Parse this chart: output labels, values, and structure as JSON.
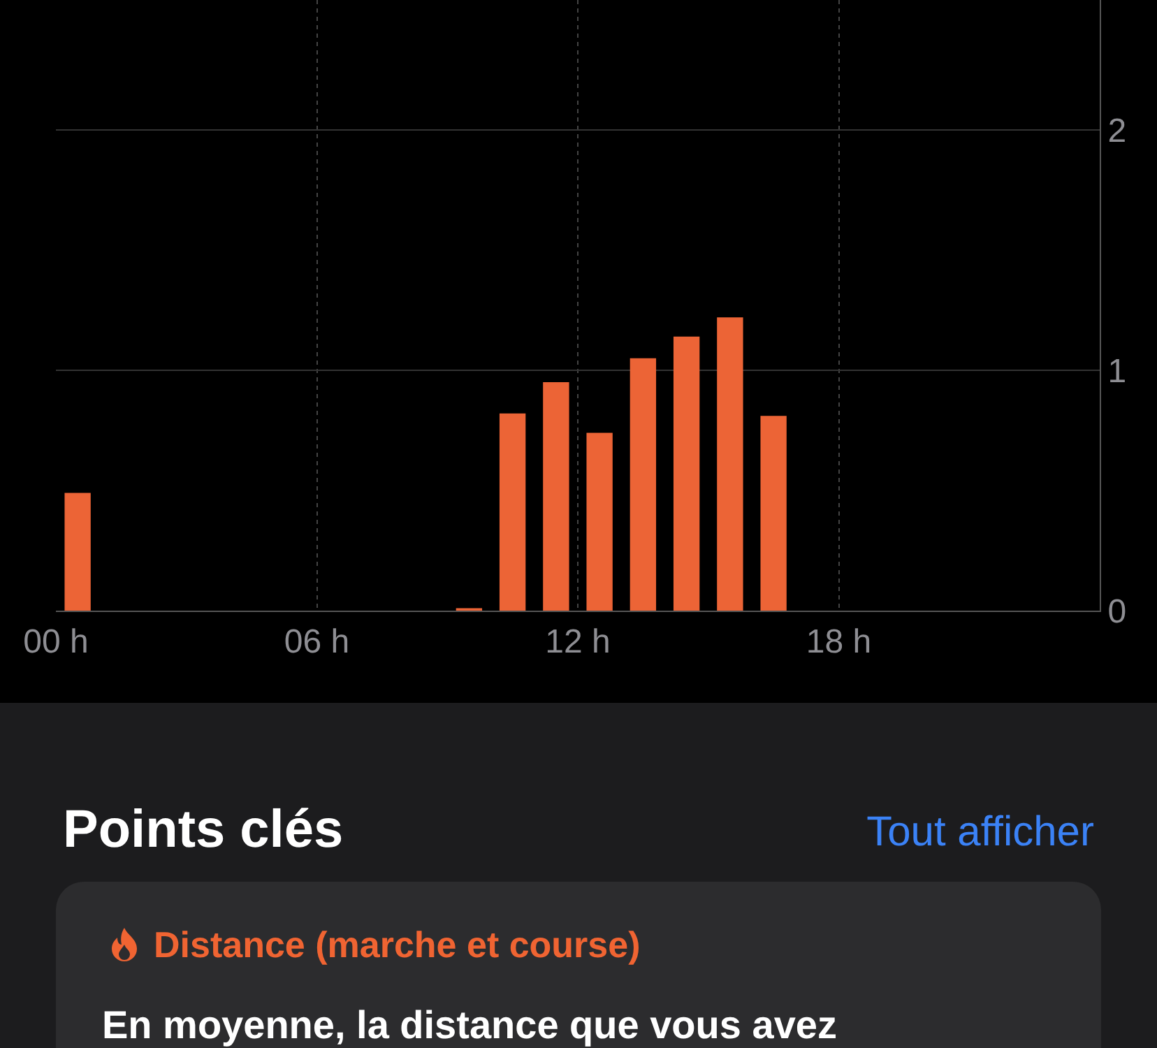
{
  "chart_data": {
    "type": "bar",
    "x": [
      0.5,
      9.5,
      10.5,
      11.5,
      12.5,
      13.5,
      14.5,
      15.5,
      16.5
    ],
    "values": [
      0.49,
      0.01,
      0.82,
      0.95,
      0.74,
      1.05,
      1.14,
      1.22,
      0.81
    ],
    "color": "#ec6436",
    "xlim": [
      0,
      24
    ],
    "xticks": [
      {
        "value": 0,
        "label": "00 h"
      },
      {
        "value": 6,
        "label": "06 h"
      },
      {
        "value": 12,
        "label": "12 h"
      },
      {
        "value": 18,
        "label": "18 h"
      }
    ],
    "ylim": [
      0,
      2.54
    ],
    "yticks": [
      0,
      1,
      2
    ],
    "grid": true,
    "annotations": [
      "Points clés",
      "Tout afficher",
      "Distance (marche et course)",
      "En moyenne, la distance que vous avez"
    ]
  }
}
